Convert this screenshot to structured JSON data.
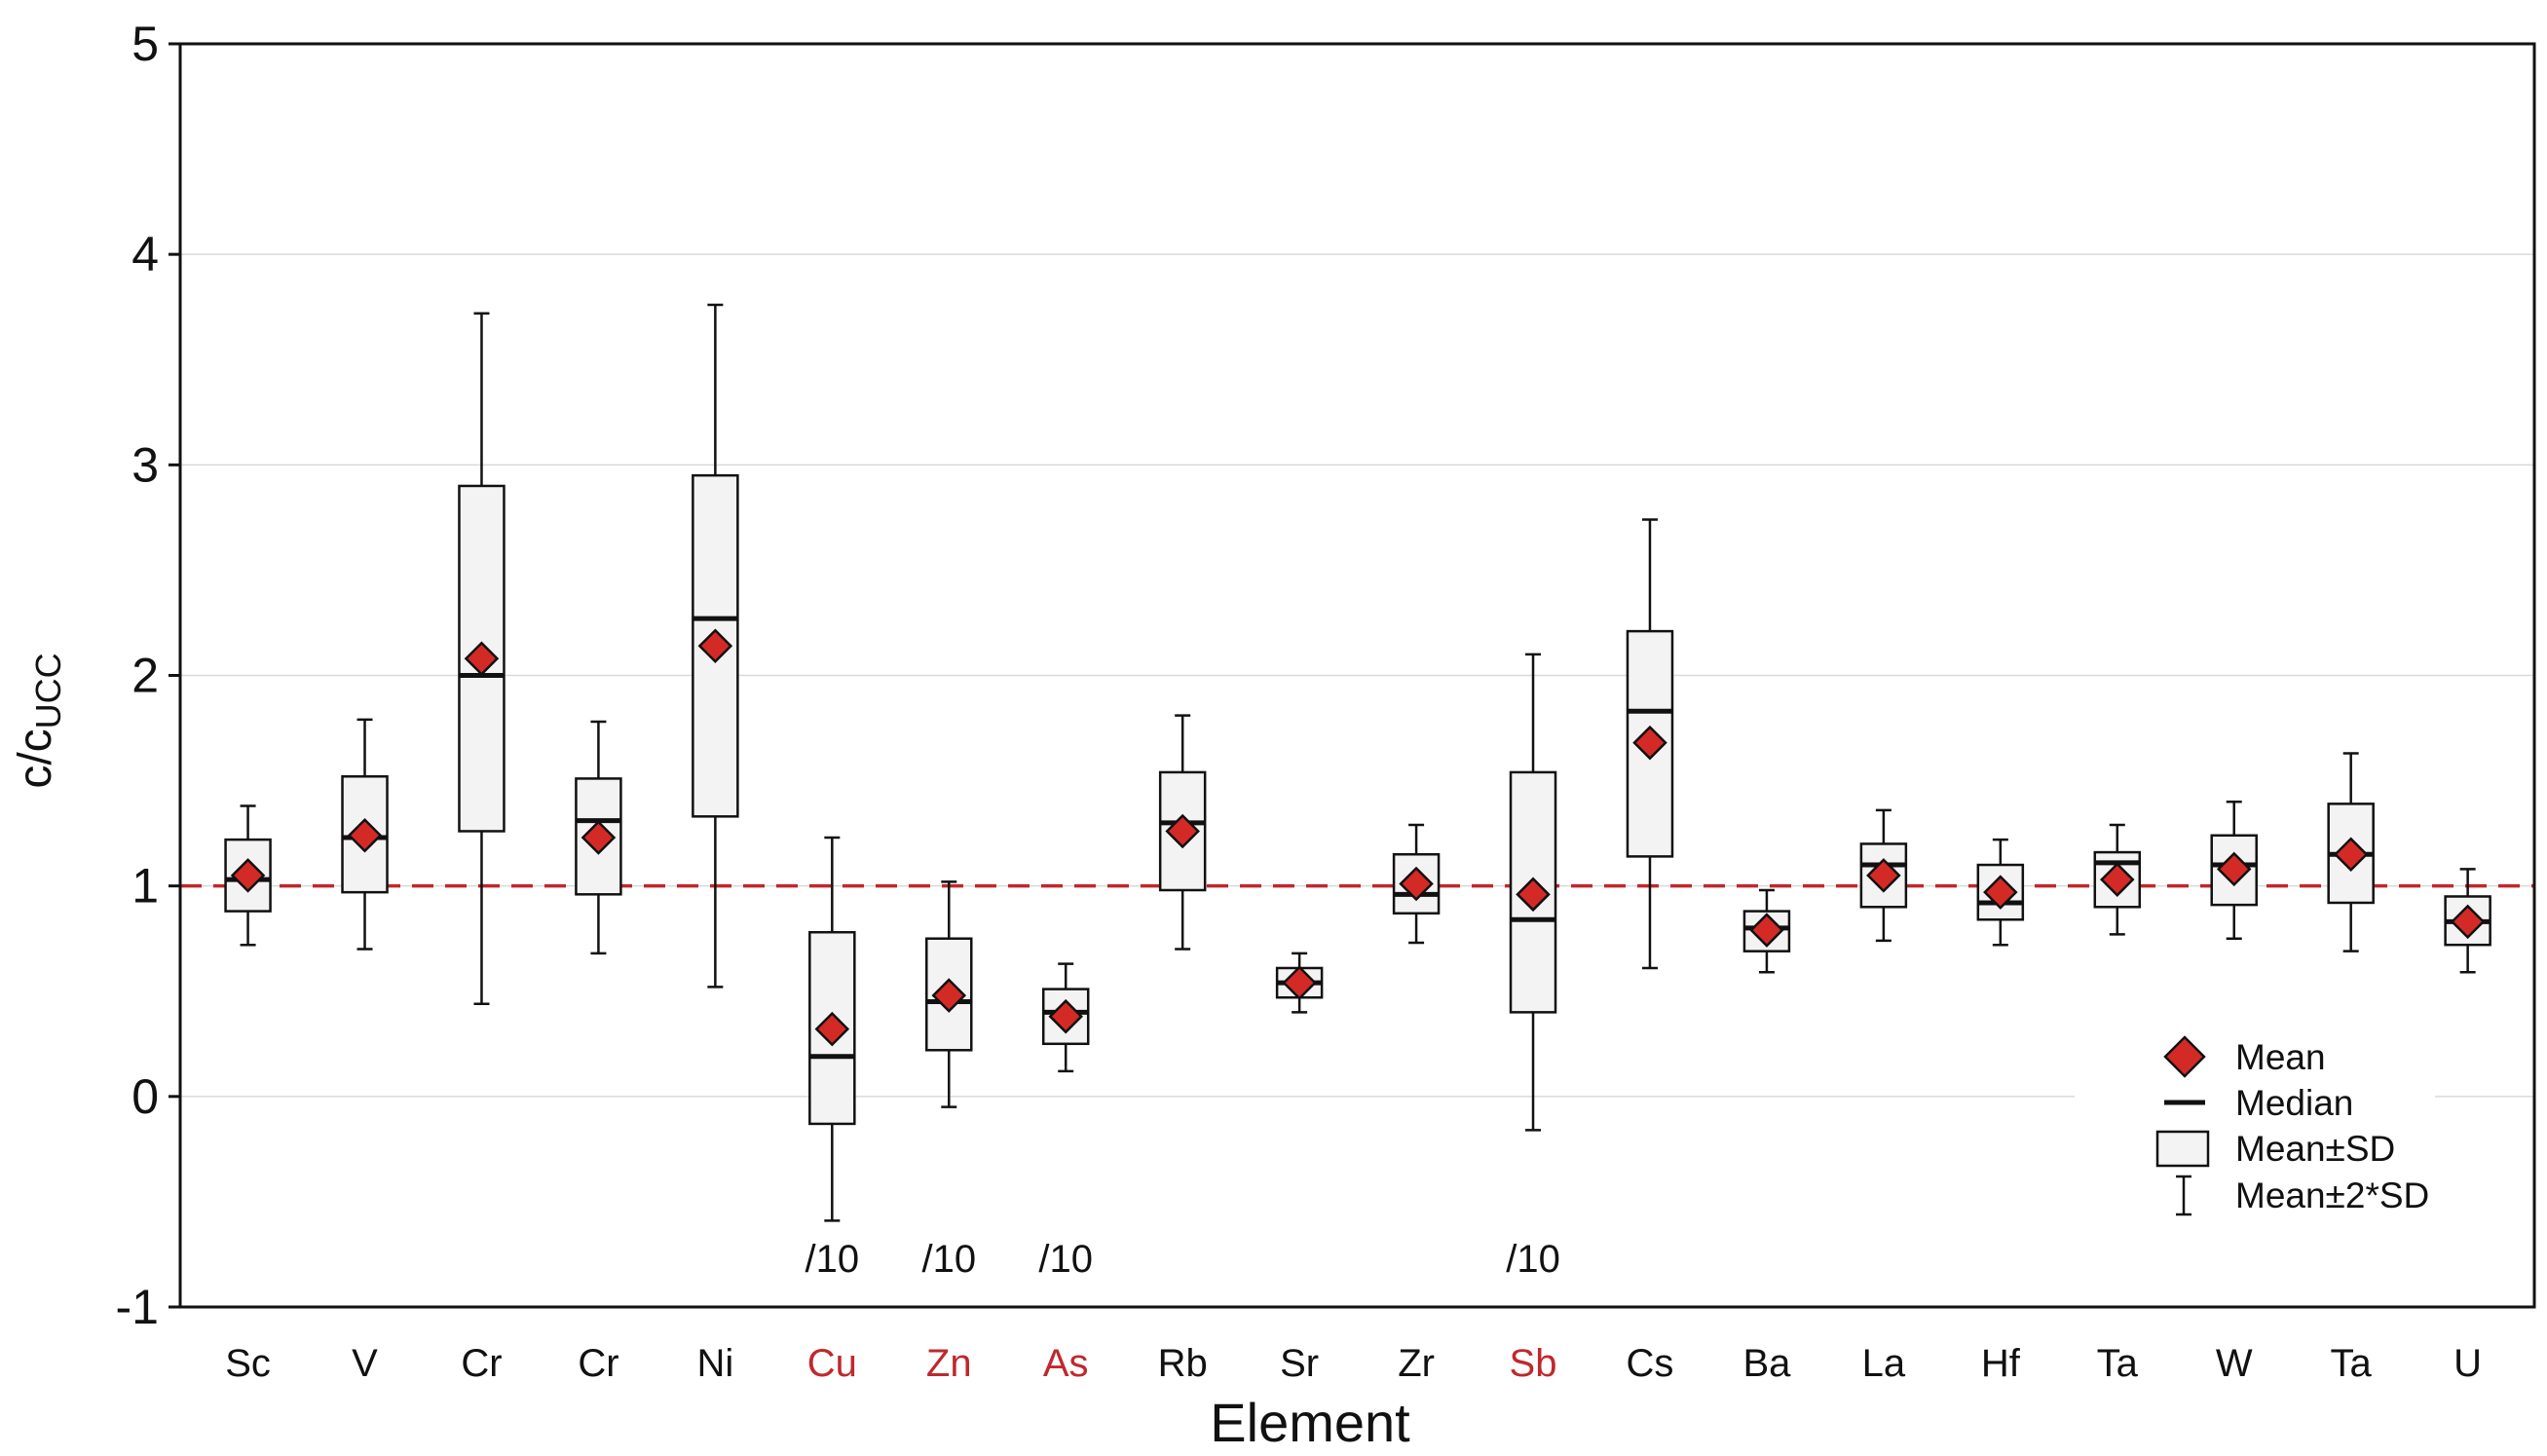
{
  "chart_data": {
    "type": "box",
    "ylabel_main": "c/c",
    "ylabel_sub": "UCC",
    "xlabel": "Element",
    "ylim": [
      -1,
      5
    ],
    "yticks": [
      "-1",
      "0",
      "1",
      "2",
      "3",
      "4",
      "5"
    ],
    "grid": "horizontal",
    "reference_line": 1,
    "reference_color": "#c0282d",
    "highlight_color": "#c0282d",
    "mean_color": "#d42a26",
    "legend_position": "lower-right",
    "legend": {
      "mean": "Mean",
      "median": "Median",
      "box": "Mean±SD",
      "whisker": "Mean±2*SD"
    },
    "categories": [
      {
        "label": "Sc",
        "highlight": false,
        "note": "",
        "mean": 1.05,
        "median": 1.03,
        "box_low": 0.88,
        "box_high": 1.22,
        "whisker_low": 0.72,
        "whisker_high": 1.38
      },
      {
        "label": "V",
        "highlight": false,
        "note": "",
        "mean": 1.24,
        "median": 1.23,
        "box_low": 0.97,
        "box_high": 1.52,
        "whisker_low": 0.7,
        "whisker_high": 1.79
      },
      {
        "label": "Cr",
        "highlight": false,
        "note": "",
        "mean": 2.08,
        "median": 2.0,
        "box_low": 1.26,
        "box_high": 2.9,
        "whisker_low": 0.44,
        "whisker_high": 3.72
      },
      {
        "label": "Cr",
        "highlight": false,
        "note": "",
        "mean": 1.23,
        "median": 1.31,
        "box_low": 0.96,
        "box_high": 1.51,
        "whisker_low": 0.68,
        "whisker_high": 1.78
      },
      {
        "label": "Ni",
        "highlight": false,
        "note": "",
        "mean": 2.14,
        "median": 2.27,
        "box_low": 1.33,
        "box_high": 2.95,
        "whisker_low": 0.52,
        "whisker_high": 3.76
      },
      {
        "label": "Cu",
        "highlight": true,
        "note": "/10",
        "mean": 0.32,
        "median": 0.19,
        "box_low": -0.13,
        "box_high": 0.78,
        "whisker_low": -0.59,
        "whisker_high": 1.23
      },
      {
        "label": "Zn",
        "highlight": true,
        "note": "/10",
        "mean": 0.48,
        "median": 0.45,
        "box_low": 0.22,
        "box_high": 0.75,
        "whisker_low": -0.05,
        "whisker_high": 1.02
      },
      {
        "label": "As",
        "highlight": true,
        "note": "/10",
        "mean": 0.38,
        "median": 0.4,
        "box_low": 0.25,
        "box_high": 0.51,
        "whisker_low": 0.12,
        "whisker_high": 0.63
      },
      {
        "label": "Rb",
        "highlight": false,
        "note": "",
        "mean": 1.26,
        "median": 1.3,
        "box_low": 0.98,
        "box_high": 1.54,
        "whisker_low": 0.7,
        "whisker_high": 1.81
      },
      {
        "label": "Sr",
        "highlight": false,
        "note": "",
        "mean": 0.54,
        "median": 0.54,
        "box_low": 0.47,
        "box_high": 0.61,
        "whisker_low": 0.4,
        "whisker_high": 0.68
      },
      {
        "label": "Zr",
        "highlight": false,
        "note": "",
        "mean": 1.01,
        "median": 0.96,
        "box_low": 0.87,
        "box_high": 1.15,
        "whisker_low": 0.73,
        "whisker_high": 1.29
      },
      {
        "label": "Sb",
        "highlight": true,
        "note": "/10",
        "mean": 0.96,
        "median": 0.84,
        "box_low": 0.4,
        "box_high": 1.54,
        "whisker_low": -0.16,
        "whisker_high": 2.1
      },
      {
        "label": "Cs",
        "highlight": false,
        "note": "",
        "mean": 1.68,
        "median": 1.83,
        "box_low": 1.14,
        "box_high": 2.21,
        "whisker_low": 0.61,
        "whisker_high": 2.74
      },
      {
        "label": "Ba",
        "highlight": false,
        "note": "",
        "mean": 0.79,
        "median": 0.8,
        "box_low": 0.69,
        "box_high": 0.88,
        "whisker_low": 0.59,
        "whisker_high": 0.98
      },
      {
        "label": "La",
        "highlight": false,
        "note": "",
        "mean": 1.05,
        "median": 1.1,
        "box_low": 0.9,
        "box_high": 1.2,
        "whisker_low": 0.74,
        "whisker_high": 1.36
      },
      {
        "label": "Hf",
        "highlight": false,
        "note": "",
        "mean": 0.97,
        "median": 0.92,
        "box_low": 0.84,
        "box_high": 1.1,
        "whisker_low": 0.72,
        "whisker_high": 1.22
      },
      {
        "label": "Ta",
        "highlight": false,
        "note": "",
        "mean": 1.03,
        "median": 1.11,
        "box_low": 0.9,
        "box_high": 1.16,
        "whisker_low": 0.77,
        "whisker_high": 1.29
      },
      {
        "label": "W",
        "highlight": false,
        "note": "",
        "mean": 1.08,
        "median": 1.1,
        "box_low": 0.91,
        "box_high": 1.24,
        "whisker_low": 0.75,
        "whisker_high": 1.4
      },
      {
        "label": "Ta",
        "highlight": false,
        "note": "",
        "mean": 1.15,
        "median": 1.15,
        "box_low": 0.92,
        "box_high": 1.39,
        "whisker_low": 0.69,
        "whisker_high": 1.63
      },
      {
        "label": "U",
        "highlight": false,
        "note": "",
        "mean": 0.83,
        "median": 0.83,
        "box_low": 0.72,
        "box_high": 0.95,
        "whisker_low": 0.59,
        "whisker_high": 1.08
      }
    ]
  }
}
